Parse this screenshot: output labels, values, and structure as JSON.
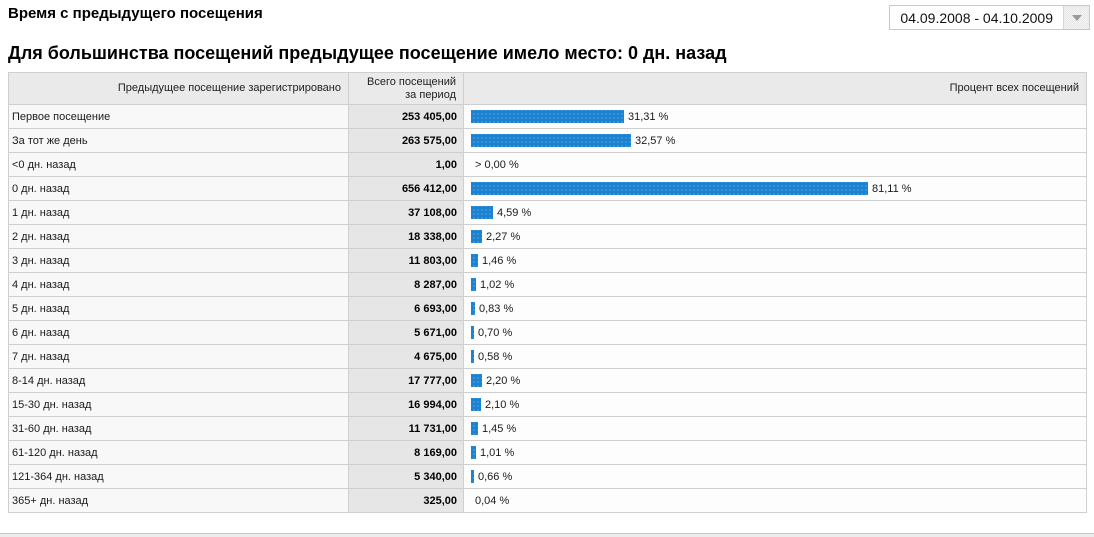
{
  "header": {
    "title": "Время с предыдущего посещения",
    "subtitle": "Для большинства посещений предыдущее посещение имело место: 0 дн. назад",
    "date_range": "04.09.2008 - 04.10.2009"
  },
  "table": {
    "columns": [
      "Предыдущее посещение зарегистрировано",
      "Всего посещений\nза период",
      "Процент всех посещений"
    ],
    "rows": [
      {
        "label": "Первое посещение",
        "total": "253 405,00",
        "percent": 31.31,
        "percent_label": "31,31 %"
      },
      {
        "label": "За тот же день",
        "total": "263 575,00",
        "percent": 32.57,
        "percent_label": "32,57 %"
      },
      {
        "label": "<0 дн. назад",
        "total": "1,00",
        "percent": 0,
        "percent_label": "> 0,00 %"
      },
      {
        "label": "0 дн. назад",
        "total": "656 412,00",
        "percent": 81.11,
        "percent_label": "81,11 %"
      },
      {
        "label": "1 дн. назад",
        "total": "37 108,00",
        "percent": 4.59,
        "percent_label": "4,59 %"
      },
      {
        "label": "2 дн. назад",
        "total": "18 338,00",
        "percent": 2.27,
        "percent_label": "2,27 %"
      },
      {
        "label": "3 дн. назад",
        "total": "11 803,00",
        "percent": 1.46,
        "percent_label": "1,46 %"
      },
      {
        "label": "4 дн. назад",
        "total": "8 287,00",
        "percent": 1.02,
        "percent_label": "1,02 %"
      },
      {
        "label": "5 дн. назад",
        "total": "6 693,00",
        "percent": 0.83,
        "percent_label": "0,83 %"
      },
      {
        "label": "6 дн. назад",
        "total": "5 671,00",
        "percent": 0.7,
        "percent_label": "0,70 %"
      },
      {
        "label": "7 дн. назад",
        "total": "4 675,00",
        "percent": 0.58,
        "percent_label": "0,58 %"
      },
      {
        "label": "8-14 дн. назад",
        "total": "17 777,00",
        "percent": 2.2,
        "percent_label": "2,20 %"
      },
      {
        "label": "15-30 дн. назад",
        "total": "16 994,00",
        "percent": 2.1,
        "percent_label": "2,10 %"
      },
      {
        "label": "31-60 дн. назад",
        "total": "11 731,00",
        "percent": 1.45,
        "percent_label": "1,45 %"
      },
      {
        "label": "61-120 дн. назад",
        "total": "8 169,00",
        "percent": 1.01,
        "percent_label": "1,01 %"
      },
      {
        "label": "121-364 дн. назад",
        "total": "5 340,00",
        "percent": 0.66,
        "percent_label": "0,66 %"
      },
      {
        "label": "365+ дн. назад",
        "total": "325,00",
        "percent": 0.04,
        "percent_label": "0,04 %"
      }
    ]
  },
  "chart_data": {
    "type": "bar",
    "title": "Время с предыдущего посещения",
    "subtitle": "Для большинства посещений предыдущее посещение имело место: 0 дн. назад",
    "categories": [
      "Первое посещение",
      "За тот же день",
      "<0 дн. назад",
      "0 дн. назад",
      "1 дн. назад",
      "2 дн. назад",
      "3 дн. назад",
      "4 дн. назад",
      "5 дн. назад",
      "6 дн. назад",
      "7 дн. назад",
      "8-14 дн. назад",
      "15-30 дн. назад",
      "31-60 дн. назад",
      "61-120 дн. назад",
      "121-364 дн. назад",
      "365+ дн. назад"
    ],
    "series": [
      {
        "name": "Всего посещений за период",
        "values": [
          253405,
          263575,
          1,
          656412,
          37108,
          18338,
          11803,
          8287,
          6693,
          5671,
          4675,
          17777,
          16994,
          11731,
          8169,
          5340,
          325
        ]
      },
      {
        "name": "Процент всех посещений",
        "values": [
          31.31,
          32.57,
          0.0,
          81.11,
          4.59,
          2.27,
          1.46,
          1.02,
          0.83,
          0.7,
          0.58,
          2.2,
          2.1,
          1.45,
          1.01,
          0.66,
          0.04
        ]
      }
    ],
    "xlabel": "Процент всех посещений",
    "ylabel": "Предыдущее посещение зарегистрировано",
    "xlim": [
      0,
      100
    ],
    "grid": false,
    "legend_position": "none",
    "bar_color": "#1b82d2",
    "orientation": "horizontal"
  },
  "colors": {
    "bar_blue": "#1b82d2",
    "header_gray": "#e3e3e3",
    "total_column_gray": "#dedede",
    "label_column_gray": "#f6f6f6"
  }
}
